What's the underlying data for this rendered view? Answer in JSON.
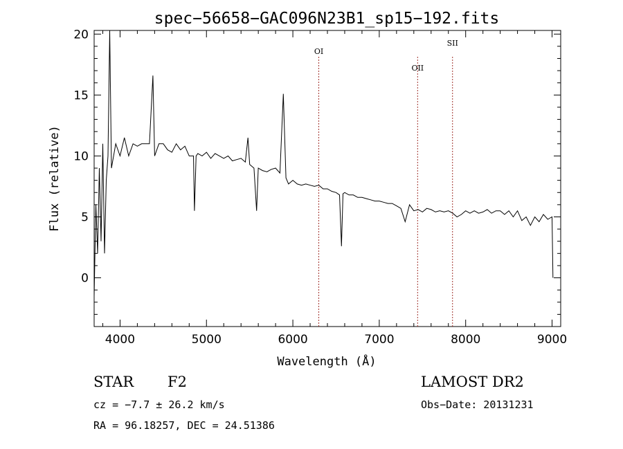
{
  "chart_data": {
    "type": "line",
    "title": "spec−56658−GAC096N23B1_sp15−192.fits",
    "xlabel": "Wavelength (Å)",
    "ylabel": "Flux (relative)",
    "xlim": [
      3700,
      9100
    ],
    "ylim": [
      -4,
      20.3
    ],
    "grid": false,
    "x_ticks": [
      4000,
      5000,
      6000,
      7000,
      8000,
      9000
    ],
    "y_ticks": [
      0,
      5,
      10,
      15,
      20
    ],
    "x_minor_step": 200,
    "y_minor_step": 1,
    "series": [
      {
        "color": "#000000",
        "x": [
          3700,
          3720,
          3740,
          3760,
          3780,
          3800,
          3820,
          3840,
          3860,
          3880,
          3900,
          3950,
          4000,
          4050,
          4100,
          4150,
          4200,
          4250,
          4300,
          4340,
          4380,
          4400,
          4450,
          4500,
          4550,
          4600,
          4650,
          4700,
          4750,
          4800,
          4850,
          4861,
          4880,
          4900,
          4950,
          5000,
          5050,
          5100,
          5150,
          5200,
          5250,
          5300,
          5350,
          5400,
          5450,
          5480,
          5500,
          5550,
          5580,
          5600,
          5650,
          5700,
          5750,
          5800,
          5850,
          5890,
          5920,
          5950,
          6000,
          6050,
          6100,
          6150,
          6200,
          6250,
          6300,
          6350,
          6400,
          6450,
          6500,
          6540,
          6563,
          6580,
          6600,
          6650,
          6700,
          6750,
          6800,
          6850,
          6900,
          6950,
          7000,
          7050,
          7100,
          7150,
          7200,
          7250,
          7300,
          7350,
          7400,
          7450,
          7500,
          7550,
          7600,
          7650,
          7700,
          7750,
          7800,
          7850,
          7900,
          7950,
          8000,
          8050,
          8100,
          8150,
          8200,
          8250,
          8300,
          8350,
          8400,
          8450,
          8500,
          8550,
          8600,
          8650,
          8700,
          8750,
          8800,
          8850,
          8900,
          8950,
          9000,
          9010
        ],
        "y": [
          -1.5,
          6,
          2,
          9,
          3,
          11,
          2,
          8,
          10,
          20.3,
          9,
          11,
          10,
          11.5,
          10,
          11,
          10.8,
          11,
          11,
          11,
          16.6,
          10,
          11,
          11,
          10.5,
          10.3,
          11,
          10.5,
          10.8,
          10,
          10,
          5.5,
          10,
          10.2,
          10,
          10.3,
          9.8,
          10.2,
          10,
          9.8,
          10,
          9.6,
          9.7,
          9.8,
          9.5,
          11.5,
          9.3,
          9.0,
          5.5,
          9.0,
          8.8,
          8.7,
          8.9,
          9.0,
          8.6,
          15.1,
          8.2,
          7.7,
          8.0,
          7.7,
          7.6,
          7.7,
          7.6,
          7.5,
          7.6,
          7.3,
          7.3,
          7.1,
          7.0,
          6.8,
          2.6,
          6.9,
          7.0,
          6.8,
          6.8,
          6.6,
          6.6,
          6.5,
          6.4,
          6.3,
          6.3,
          6.2,
          6.1,
          6.1,
          5.9,
          5.7,
          4.6,
          6.0,
          5.5,
          5.6,
          5.4,
          5.7,
          5.6,
          5.4,
          5.5,
          5.4,
          5.5,
          5.3,
          5.0,
          5.2,
          5.5,
          5.3,
          5.5,
          5.3,
          5.4,
          5.6,
          5.3,
          5.5,
          5.5,
          5.2,
          5.5,
          5.0,
          5.5,
          4.7,
          5.0,
          4.3,
          5.0,
          4.6,
          5.2,
          4.8,
          5.0,
          0.0
        ]
      }
    ],
    "annotations": [
      {
        "label": "OI",
        "x": 6300
      },
      {
        "label": "OII",
        "x": 7444
      },
      {
        "label": "SII",
        "x": 7848
      }
    ],
    "line_color_annotations": "#a0302a"
  },
  "footer": {
    "object_type": "STAR",
    "subclass": "F2",
    "survey": "LAMOST DR2",
    "velocity": "cz = −7.7 ± 26.2 km/s",
    "obs_date": "Obs−Date: 20131231",
    "coords": "RA =  96.18257, DEC =  24.51386"
  }
}
